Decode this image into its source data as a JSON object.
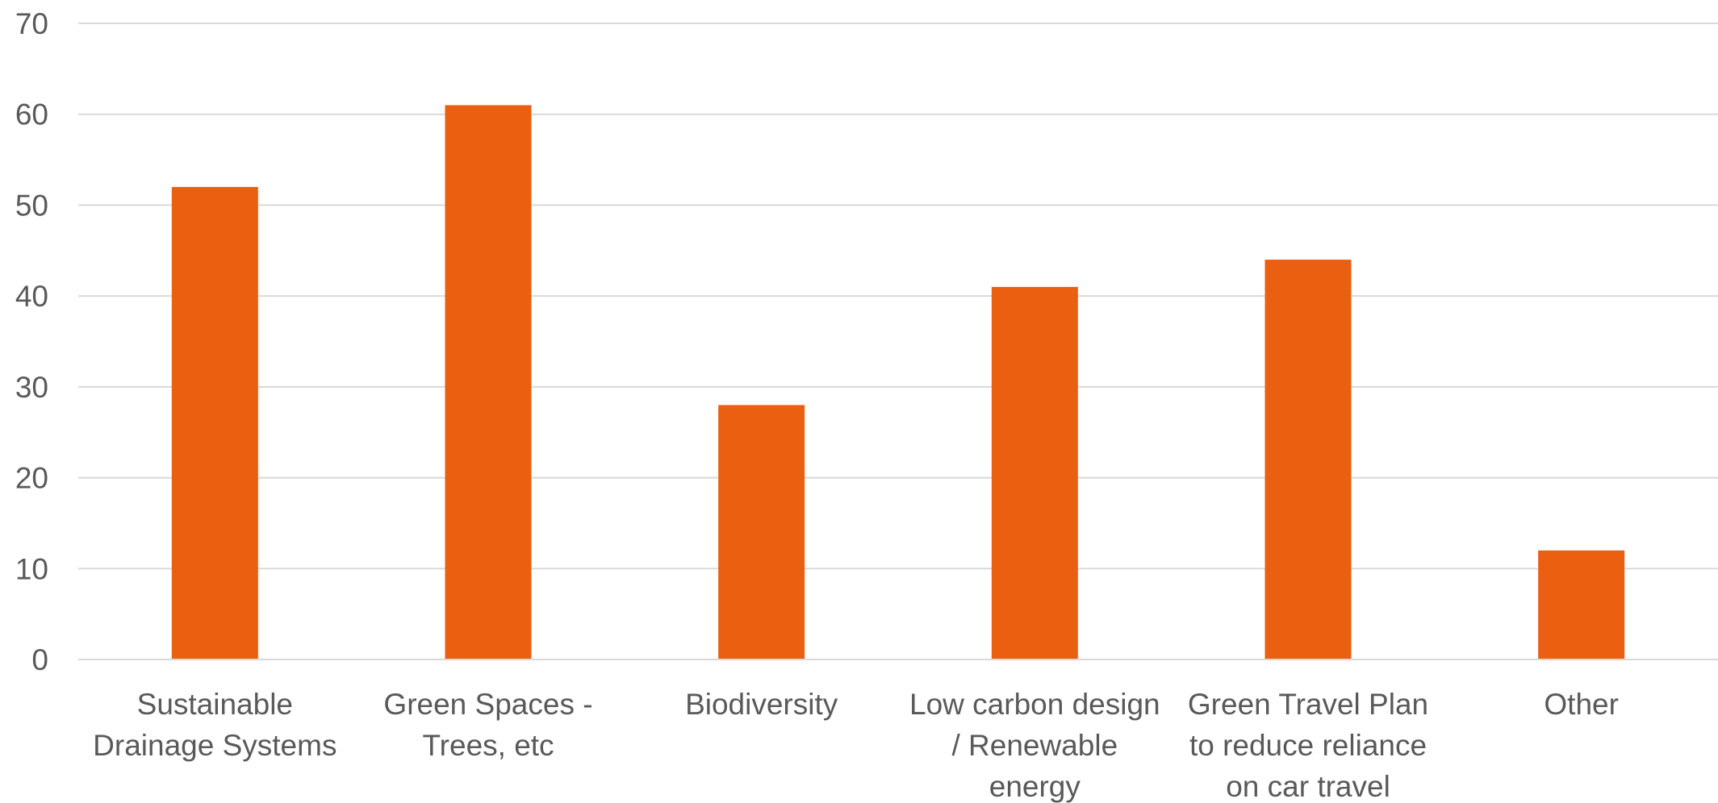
{
  "chart_data": {
    "type": "bar",
    "title": "",
    "xlabel": "",
    "ylabel": "",
    "categories": [
      [
        "Sustainable",
        "Drainage Systems"
      ],
      [
        "Green Spaces -",
        "Trees, etc"
      ],
      [
        "Biodiversity"
      ],
      [
        "Low carbon design",
        "/ Renewable",
        "energy"
      ],
      [
        "Green Travel Plan",
        "to reduce reliance",
        "on car travel"
      ],
      [
        "Other"
      ]
    ],
    "values": [
      52,
      61,
      28,
      41,
      44,
      12
    ],
    "ylim": [
      0,
      70
    ],
    "yticks": [
      "0",
      "10",
      "20",
      "30",
      "40",
      "50",
      "60",
      "70"
    ],
    "grid": true,
    "legend": "none",
    "bar_color": "#EA5F10",
    "grid_color": "#D9D9D9",
    "text_color": "#595959"
  }
}
